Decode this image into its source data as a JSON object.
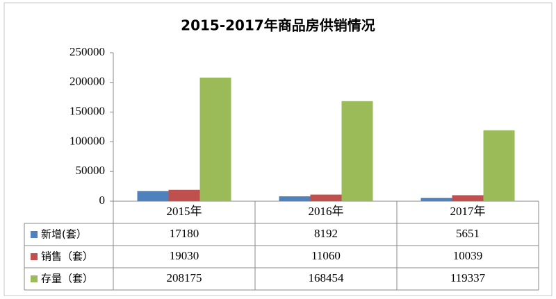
{
  "chart_data": {
    "type": "bar",
    "title": "2015-2017年商品房供销情况",
    "categories": [
      "2015年",
      "2016年",
      "2017年"
    ],
    "series": [
      {
        "name": "新增(套）",
        "color": "#4f81bd",
        "values": [
          17180,
          8192,
          5651
        ]
      },
      {
        "name": "销售（套）",
        "color": "#c0504d",
        "values": [
          19030,
          11060,
          10039
        ]
      },
      {
        "name": "存量（套）",
        "color": "#9bbb59",
        "values": [
          208175,
          168454,
          119337
        ]
      }
    ],
    "ylim": [
      0,
      250000
    ],
    "yticks": [
      0,
      50000,
      100000,
      150000,
      200000,
      250000
    ],
    "grid": false
  }
}
